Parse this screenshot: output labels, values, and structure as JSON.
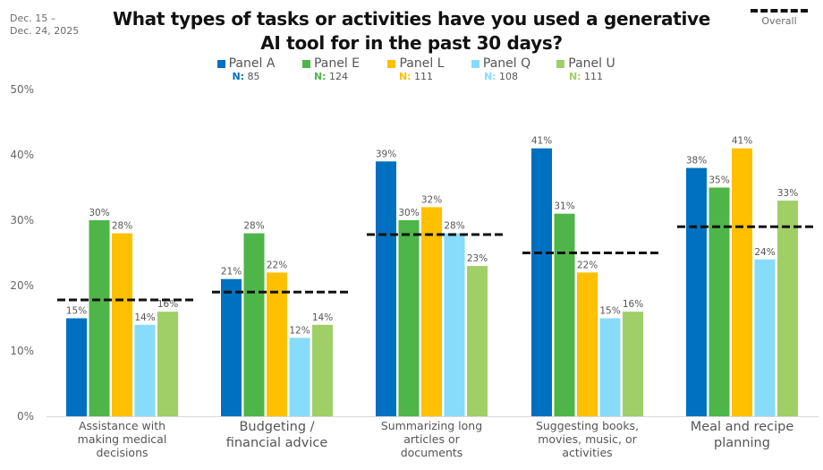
{
  "header": {
    "date_line1": "Dec. 15 –",
    "date_line2": "Dec. 24, 2025",
    "overall_label": "Overall"
  },
  "chart_data": {
    "type": "bar",
    "title_line1": "What types of tasks or activities have you used a generative",
    "title_line2": "AI tool for in the past 30 days?",
    "xlabel": "",
    "ylabel": "",
    "ylim": [
      0,
      50
    ],
    "yticks": [
      "0%",
      "10%",
      "20%",
      "30%",
      "40%",
      "50%"
    ],
    "ytick_values": [
      0,
      10,
      20,
      30,
      40,
      50
    ],
    "grid": false,
    "legend_position": "top",
    "categories": [
      "Assistance with making medical decisions",
      "Budgeting / financial advice",
      "Summarizing long articles or documents",
      "Suggesting books, movies, music, or activities",
      "Meal and recipe planning"
    ],
    "category_lines": [
      [
        "Assistance with",
        "making medical",
        "decisions"
      ],
      [
        "Budgeting /",
        "financial advice"
      ],
      [
        "Summarizing long",
        "articles or",
        "documents"
      ],
      [
        "Suggesting books,",
        "movies, music, or",
        "activities"
      ],
      [
        "Meal and recipe",
        "planning"
      ]
    ],
    "series": [
      {
        "name": "Panel A",
        "n_prefix": "N:",
        "n": "85",
        "color": "#0070C0",
        "values": [
          15,
          21,
          39,
          41,
          38
        ],
        "labels": [
          "15%",
          "21%",
          "39%",
          "41%",
          "38%"
        ]
      },
      {
        "name": "Panel E",
        "n_prefix": "N:",
        "n": "124",
        "color": "#4EB548",
        "values": [
          30,
          28,
          30,
          31,
          35
        ],
        "labels": [
          "30%",
          "28%",
          "30%",
          "31%",
          "35%"
        ]
      },
      {
        "name": "Panel L",
        "n_prefix": "N:",
        "n": "111",
        "color": "#FFC000",
        "values": [
          28,
          22,
          32,
          22,
          41
        ],
        "labels": [
          "28%",
          "22%",
          "32%",
          "22%",
          "41%"
        ]
      },
      {
        "name": "Panel Q",
        "n_prefix": "N:",
        "n": "108",
        "color": "#87DBFB",
        "values": [
          14,
          12,
          28,
          15,
          24
        ],
        "labels": [
          "14%",
          "12%",
          "28%",
          "15%",
          "24%"
        ]
      },
      {
        "name": "Panel U",
        "n_prefix": "N:",
        "n": "111",
        "color": "#A0CE67",
        "values": [
          16,
          14,
          23,
          16,
          33
        ],
        "labels": [
          "16%",
          "14%",
          "23%",
          "16%",
          "33%"
        ]
      }
    ],
    "overall": {
      "name": "Overall",
      "values": [
        17.8,
        19,
        27.8,
        25,
        29
      ],
      "color": "#111111"
    }
  }
}
